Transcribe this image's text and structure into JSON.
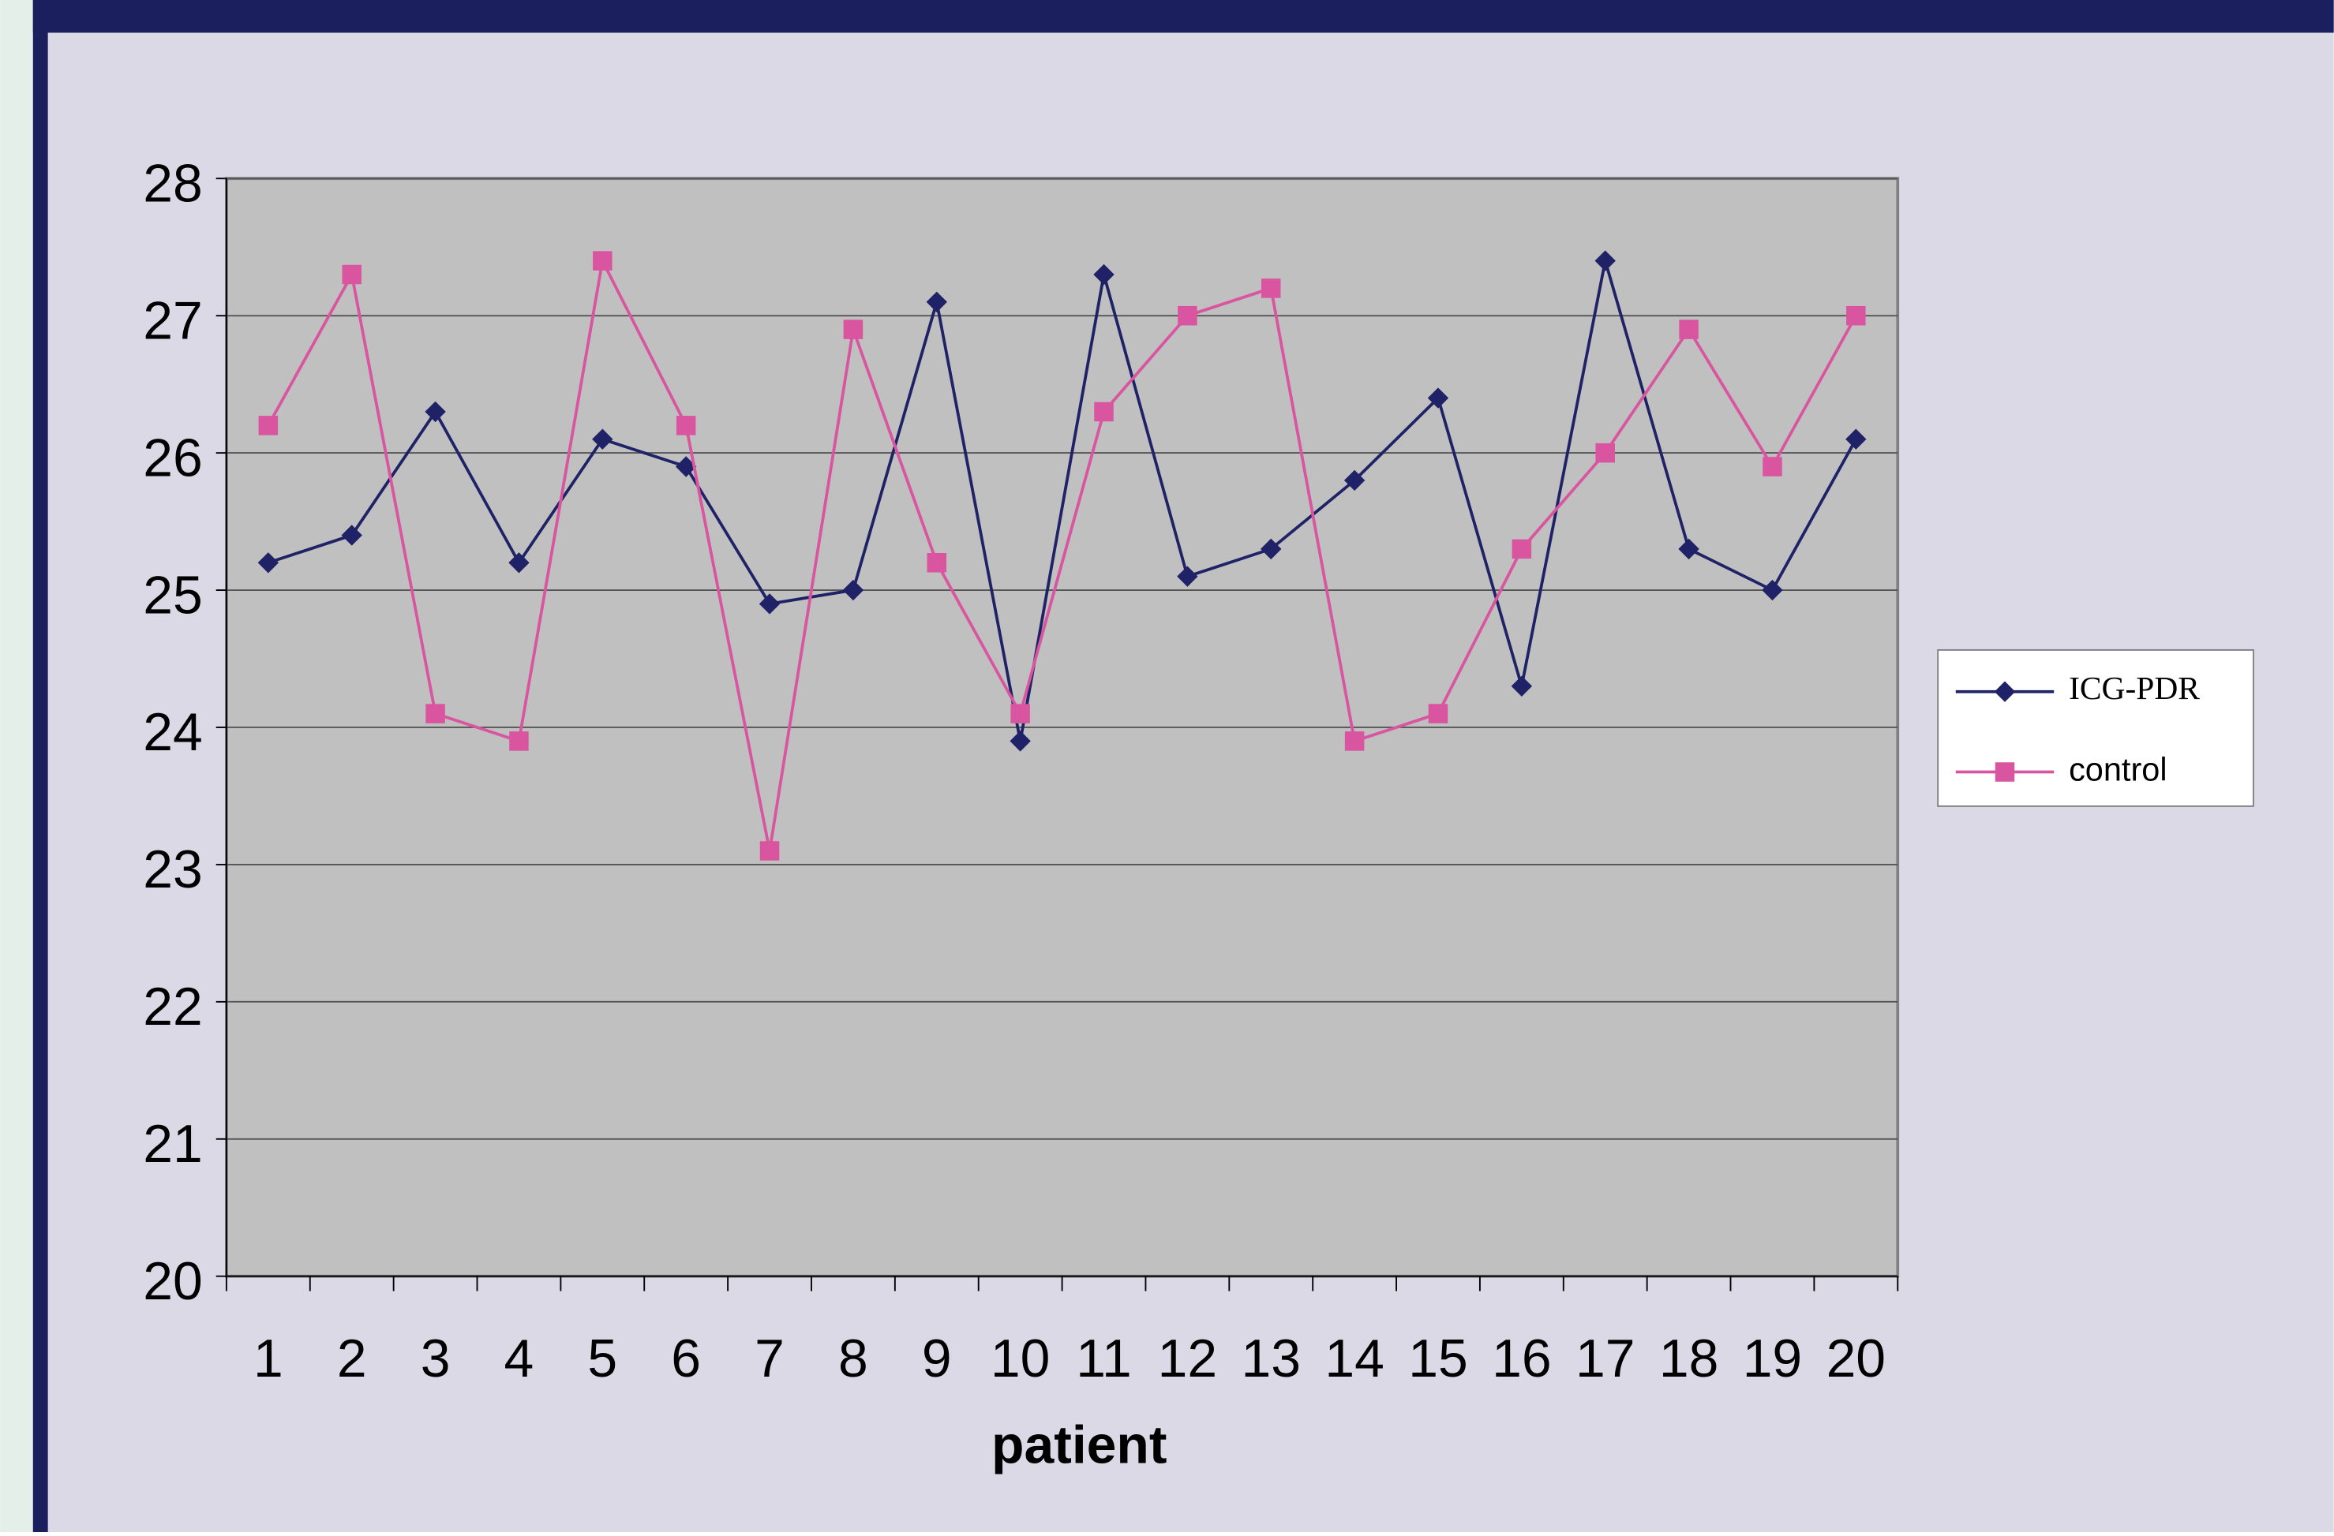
{
  "chart_data": {
    "type": "line",
    "x_label": "patient",
    "categories": [
      "1",
      "2",
      "3",
      "4",
      "5",
      "6",
      "7",
      "8",
      "9",
      "10",
      "11",
      "12",
      "13",
      "14",
      "15",
      "16",
      "17",
      "18",
      "19",
      "20"
    ],
    "series": [
      {
        "name": "ICG-PDR",
        "color": "#1f2266",
        "marker": "diamond",
        "values": [
          25.2,
          25.4,
          26.3,
          25.2,
          26.1,
          25.9,
          24.9,
          25.0,
          27.1,
          23.9,
          27.3,
          25.1,
          25.3,
          25.8,
          26.4,
          24.3,
          27.4,
          25.3,
          25.0,
          26.1
        ]
      },
      {
        "name": "control",
        "color": "#d9559f",
        "marker": "square",
        "values": [
          26.2,
          27.3,
          24.1,
          23.9,
          27.4,
          26.2,
          23.1,
          26.9,
          25.2,
          24.1,
          26.3,
          27.0,
          27.2,
          23.9,
          24.1,
          25.3,
          26.0,
          26.9,
          25.9,
          27.0
        ]
      }
    ],
    "ylim": [
      20,
      28
    ],
    "yticks": [
      20,
      21,
      22,
      23,
      24,
      25,
      26,
      27,
      28
    ],
    "grid": true,
    "legend": "right"
  }
}
